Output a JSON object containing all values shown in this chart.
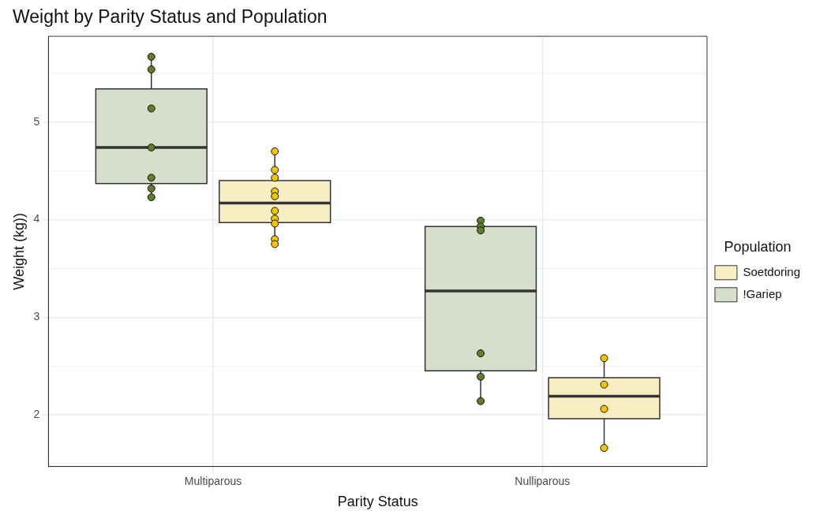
{
  "chart_data": {
    "type": "box",
    "title": "Weight by Parity Status and Population",
    "xlabel": "Parity Status",
    "ylabel": "Weight (kg))",
    "legend_title": "Population",
    "categories": [
      "Multiparous",
      "Nulliparous"
    ],
    "ylim": [
      1.47,
      5.88
    ],
    "yticks": [
      2,
      3,
      4,
      5
    ],
    "grid": true,
    "legend": "right",
    "series": [
      {
        "name": "!Gariep",
        "color": "#d6dfcc",
        "boxes": [
          {
            "low": 4.23,
            "q1": 4.37,
            "median": 4.74,
            "q3": 5.34,
            "high": 5.67
          },
          {
            "low": 2.14,
            "q1": 2.45,
            "median": 3.27,
            "q3": 3.93,
            "high": 3.99
          }
        ]
      },
      {
        "name": "Soetdoring",
        "color": "#f9edc4",
        "boxes": [
          {
            "low": 3.75,
            "q1": 3.97,
            "median": 4.17,
            "q3": 4.4,
            "high": 4.7
          },
          {
            "low": 1.66,
            "q1": 1.96,
            "median": 2.19,
            "q3": 2.38,
            "high": 2.58
          }
        ]
      },
      {
        "type": "scatter",
        "color": "#5f7f2c",
        "x": [
          "Multiparous",
          "Multiparous",
          "Multiparous",
          "Multiparous",
          "Multiparous",
          "Multiparous",
          "Multiparous",
          "Nulliparous",
          "Nulliparous",
          "Nulliparous",
          "Nulliparous",
          "Nulliparous",
          "Nulliparous"
        ],
        "values": [
          5.67,
          5.54,
          5.14,
          4.74,
          4.43,
          4.32,
          4.23,
          3.99,
          3.93,
          3.89,
          2.63,
          2.39,
          2.14
        ]
      },
      {
        "type": "scatter",
        "color": "#f2c500",
        "x": [
          "Multiparous",
          "Multiparous",
          "Multiparous",
          "Multiparous",
          "Multiparous",
          "Multiparous",
          "Multiparous",
          "Multiparous",
          "Multiparous",
          "Multiparous",
          "Nulliparous",
          "Nulliparous",
          "Nulliparous",
          "Nulliparous"
        ],
        "values": [
          4.7,
          4.51,
          4.43,
          4.29,
          4.24,
          4.09,
          4.01,
          3.96,
          3.8,
          3.75,
          2.58,
          2.31,
          2.06,
          1.66
        ]
      }
    ]
  }
}
